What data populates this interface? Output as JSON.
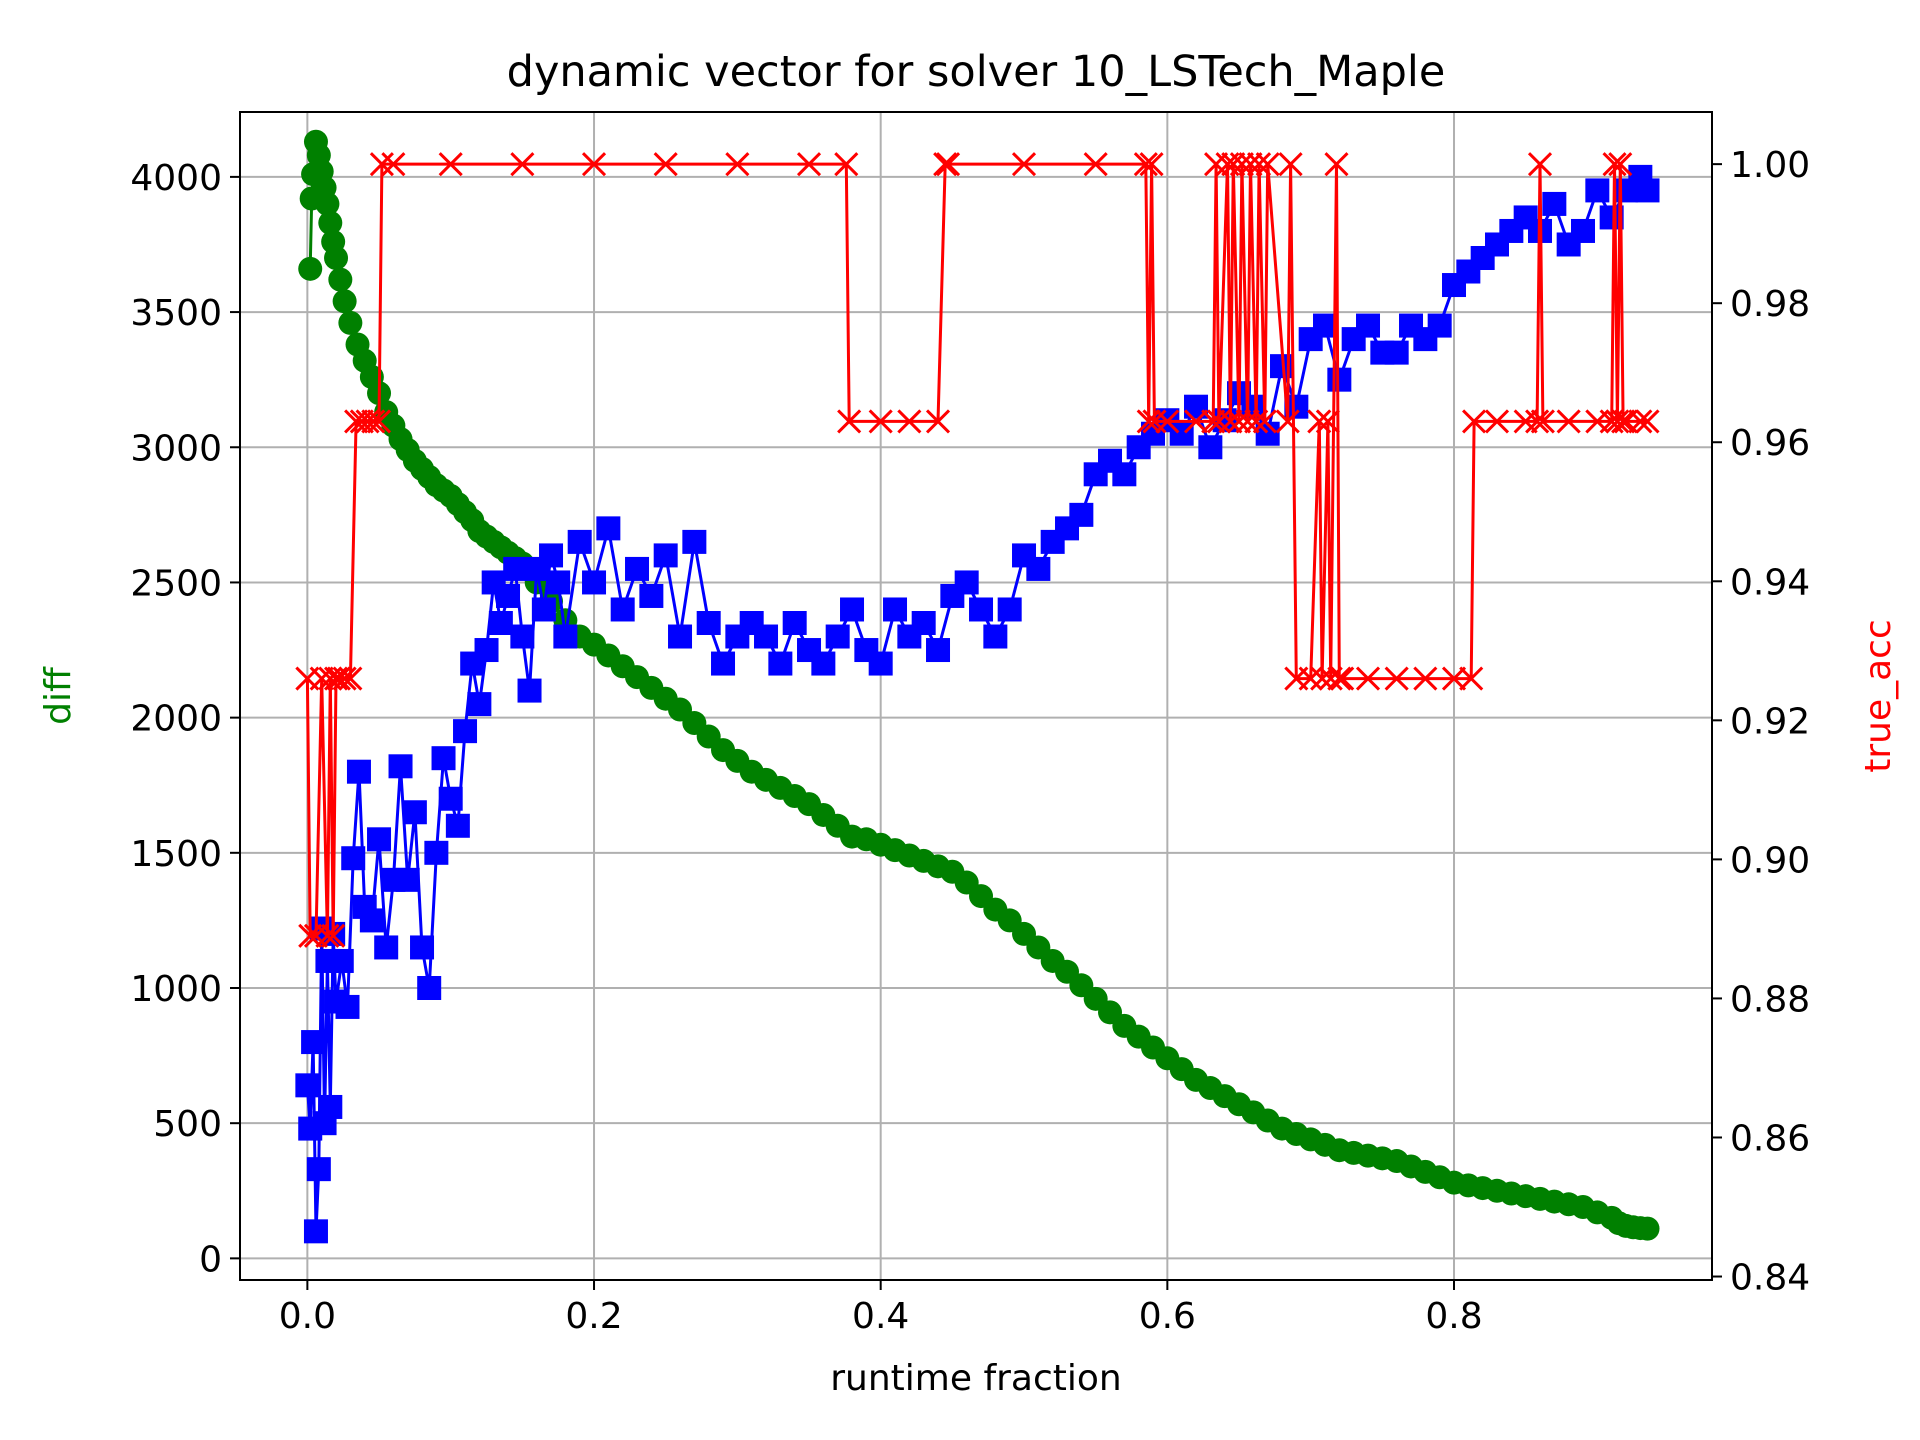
{
  "chart_data": {
    "type": "line",
    "title": "dynamic vector for solver 10_LSTech_Maple",
    "xlabel": "runtime fraction",
    "ylabel_left": "diff",
    "ylabel_right": "true_acc",
    "xlim": [
      -0.047,
      0.98
    ],
    "ylim_left": [
      -80,
      4240
    ],
    "ylim_right": [
      0.8395,
      1.0075
    ],
    "x_ticks": [
      0.0,
      0.2,
      0.4,
      0.6,
      0.8
    ],
    "x_tick_labels": [
      "0.0",
      "0.2",
      "0.4",
      "0.6",
      "0.8"
    ],
    "y_left_ticks": [
      0,
      500,
      1000,
      1500,
      2000,
      2500,
      3000,
      3500,
      4000
    ],
    "y_left_tick_labels": [
      "0",
      "500",
      "1000",
      "1500",
      "2000",
      "2500",
      "3000",
      "3500",
      "4000"
    ],
    "y_right_ticks": [
      0.84,
      0.86,
      0.88,
      0.9,
      0.92,
      0.94,
      0.96,
      0.98,
      1.0
    ],
    "y_right_tick_labels": [
      "0.84",
      "0.86",
      "0.88",
      "0.90",
      "0.92",
      "0.94",
      "0.96",
      "0.98",
      "1.00"
    ],
    "grid": true,
    "colors": {
      "green_series": "#008000",
      "blue_series": "#0000ff",
      "red_series": "#ff0000",
      "left_label": "#008000",
      "right_label": "#ff0000"
    },
    "series": [
      {
        "axis": "left",
        "marker": "circle",
        "color": "#008000",
        "x": [
          0.002,
          0.003,
          0.004,
          0.006,
          0.008,
          0.01,
          0.012,
          0.014,
          0.016,
          0.018,
          0.02,
          0.023,
          0.026,
          0.03,
          0.035,
          0.04,
          0.045,
          0.05,
          0.055,
          0.06,
          0.065,
          0.07,
          0.075,
          0.08,
          0.085,
          0.09,
          0.095,
          0.1,
          0.105,
          0.11,
          0.115,
          0.12,
          0.125,
          0.13,
          0.135,
          0.14,
          0.145,
          0.15,
          0.16,
          0.17,
          0.18,
          0.19,
          0.2,
          0.21,
          0.22,
          0.23,
          0.24,
          0.25,
          0.26,
          0.27,
          0.28,
          0.29,
          0.3,
          0.31,
          0.32,
          0.33,
          0.34,
          0.35,
          0.36,
          0.37,
          0.38,
          0.39,
          0.4,
          0.41,
          0.42,
          0.43,
          0.44,
          0.45,
          0.46,
          0.47,
          0.48,
          0.49,
          0.5,
          0.51,
          0.52,
          0.53,
          0.54,
          0.55,
          0.56,
          0.57,
          0.58,
          0.59,
          0.6,
          0.61,
          0.62,
          0.63,
          0.64,
          0.65,
          0.66,
          0.67,
          0.68,
          0.69,
          0.7,
          0.71,
          0.72,
          0.73,
          0.74,
          0.75,
          0.76,
          0.77,
          0.78,
          0.79,
          0.8,
          0.81,
          0.82,
          0.83,
          0.84,
          0.85,
          0.86,
          0.87,
          0.88,
          0.89,
          0.9,
          0.91,
          0.915,
          0.92,
          0.925,
          0.93,
          0.935
        ],
        "y": [
          3660,
          3920,
          4010,
          4130,
          4080,
          4020,
          3960,
          3900,
          3830,
          3760,
          3700,
          3620,
          3540,
          3460,
          3380,
          3320,
          3260,
          3200,
          3130,
          3080,
          3030,
          2990,
          2950,
          2920,
          2890,
          2860,
          2840,
          2820,
          2790,
          2760,
          2730,
          2690,
          2670,
          2650,
          2630,
          2610,
          2590,
          2570,
          2500,
          2430,
          2360,
          2300,
          2270,
          2230,
          2190,
          2150,
          2110,
          2070,
          2030,
          1980,
          1930,
          1880,
          1840,
          1800,
          1770,
          1740,
          1710,
          1680,
          1640,
          1600,
          1560,
          1550,
          1530,
          1510,
          1490,
          1470,
          1450,
          1430,
          1390,
          1340,
          1290,
          1250,
          1200,
          1150,
          1100,
          1060,
          1010,
          960,
          910,
          860,
          820,
          780,
          740,
          700,
          660,
          630,
          600,
          570,
          540,
          510,
          480,
          460,
          440,
          420,
          400,
          390,
          380,
          370,
          360,
          340,
          320,
          300,
          280,
          270,
          260,
          250,
          240,
          230,
          220,
          210,
          200,
          190,
          170,
          150,
          130,
          120,
          115,
          112,
          110
        ]
      },
      {
        "axis": "left",
        "marker": "square",
        "color": "#0000ff",
        "x": [
          0.0,
          0.002,
          0.004,
          0.006,
          0.008,
          0.01,
          0.012,
          0.014,
          0.016,
          0.018,
          0.02,
          0.024,
          0.028,
          0.032,
          0.036,
          0.04,
          0.045,
          0.05,
          0.055,
          0.06,
          0.065,
          0.07,
          0.075,
          0.08,
          0.085,
          0.09,
          0.095,
          0.1,
          0.105,
          0.11,
          0.115,
          0.12,
          0.125,
          0.13,
          0.135,
          0.14,
          0.145,
          0.15,
          0.155,
          0.16,
          0.165,
          0.17,
          0.175,
          0.18,
          0.19,
          0.2,
          0.21,
          0.22,
          0.23,
          0.24,
          0.25,
          0.26,
          0.27,
          0.28,
          0.29,
          0.3,
          0.31,
          0.32,
          0.33,
          0.34,
          0.35,
          0.36,
          0.37,
          0.38,
          0.39,
          0.4,
          0.41,
          0.42,
          0.43,
          0.44,
          0.45,
          0.46,
          0.47,
          0.48,
          0.49,
          0.5,
          0.51,
          0.52,
          0.53,
          0.54,
          0.55,
          0.56,
          0.57,
          0.58,
          0.59,
          0.6,
          0.61,
          0.62,
          0.63,
          0.64,
          0.65,
          0.66,
          0.67,
          0.68,
          0.69,
          0.7,
          0.71,
          0.72,
          0.73,
          0.74,
          0.75,
          0.76,
          0.77,
          0.78,
          0.79,
          0.8,
          0.81,
          0.82,
          0.83,
          0.84,
          0.85,
          0.86,
          0.87,
          0.88,
          0.89,
          0.9,
          0.91,
          0.92,
          0.93,
          0.935
        ],
        "y": [
          640,
          480,
          800,
          100,
          330,
          1220,
          500,
          1100,
          560,
          1200,
          950,
          1100,
          930,
          1480,
          1800,
          1300,
          1250,
          1550,
          1150,
          1400,
          1820,
          1400,
          1650,
          1150,
          1000,
          1500,
          1850,
          1700,
          1600,
          1950,
          2200,
          2050,
          2250,
          2500,
          2350,
          2450,
          2550,
          2300,
          2100,
          2550,
          2400,
          2600,
          2500,
          2300,
          2650,
          2500,
          2700,
          2400,
          2550,
          2450,
          2600,
          2300,
          2650,
          2350,
          2200,
          2300,
          2350,
          2300,
          2200,
          2350,
          2250,
          2200,
          2300,
          2400,
          2250,
          2200,
          2400,
          2300,
          2350,
          2250,
          2450,
          2500,
          2400,
          2300,
          2400,
          2600,
          2550,
          2650,
          2700,
          2750,
          2900,
          2950,
          2900,
          3000,
          3050,
          3100,
          3050,
          3150,
          3000,
          3100,
          3200,
          3150,
          3050,
          3300,
          3150,
          3400,
          3450,
          3250,
          3400,
          3450,
          3350,
          3350,
          3450,
          3400,
          3450,
          3600,
          3650,
          3700,
          3750,
          3800,
          3850,
          3800,
          3900,
          3750,
          3800,
          3950,
          3850,
          3950,
          4000,
          3950
        ]
      },
      {
        "axis": "right",
        "marker": "x",
        "color": "#ff0000",
        "x": [
          0.0,
          0.002,
          0.006,
          0.01,
          0.014,
          0.016,
          0.018,
          0.02,
          0.022,
          0.026,
          0.03,
          0.034,
          0.038,
          0.042,
          0.046,
          0.05,
          0.052,
          0.06,
          0.1,
          0.15,
          0.2,
          0.25,
          0.3,
          0.35,
          0.376,
          0.378,
          0.4,
          0.42,
          0.44,
          0.445,
          0.447,
          0.5,
          0.55,
          0.585,
          0.587,
          0.589,
          0.591,
          0.6,
          0.62,
          0.632,
          0.634,
          0.636,
          0.642,
          0.644,
          0.646,
          0.65,
          0.652,
          0.656,
          0.658,
          0.662,
          0.664,
          0.668,
          0.67,
          0.684,
          0.686,
          0.69,
          0.7,
          0.706,
          0.708,
          0.712,
          0.714,
          0.718,
          0.72,
          0.722,
          0.74,
          0.76,
          0.78,
          0.8,
          0.812,
          0.814,
          0.83,
          0.85,
          0.858,
          0.86,
          0.862,
          0.88,
          0.9,
          0.91,
          0.912,
          0.914,
          0.916,
          0.918,
          0.92,
          0.93,
          0.935
        ],
        "y": [
          0.926,
          0.889,
          0.889,
          0.926,
          0.889,
          0.926,
          0.889,
          0.926,
          0.926,
          0.926,
          0.926,
          0.963,
          0.963,
          0.963,
          0.963,
          0.963,
          1.0,
          1.0,
          1.0,
          1.0,
          1.0,
          1.0,
          1.0,
          1.0,
          1.0,
          0.963,
          0.963,
          0.963,
          0.963,
          1.0,
          1.0,
          1.0,
          1.0,
          1.0,
          0.963,
          1.0,
          0.963,
          0.963,
          0.963,
          0.963,
          1.0,
          0.963,
          1.0,
          0.963,
          1.0,
          0.963,
          1.0,
          0.963,
          1.0,
          0.963,
          1.0,
          0.963,
          1.0,
          0.963,
          1.0,
          0.926,
          0.926,
          0.963,
          0.926,
          0.963,
          0.926,
          1.0,
          0.926,
          0.926,
          0.926,
          0.926,
          0.926,
          0.926,
          0.926,
          0.963,
          0.963,
          0.963,
          0.963,
          1.0,
          0.963,
          0.963,
          0.963,
          0.963,
          1.0,
          0.963,
          1.0,
          0.963,
          0.963,
          0.963,
          0.963
        ]
      }
    ]
  }
}
